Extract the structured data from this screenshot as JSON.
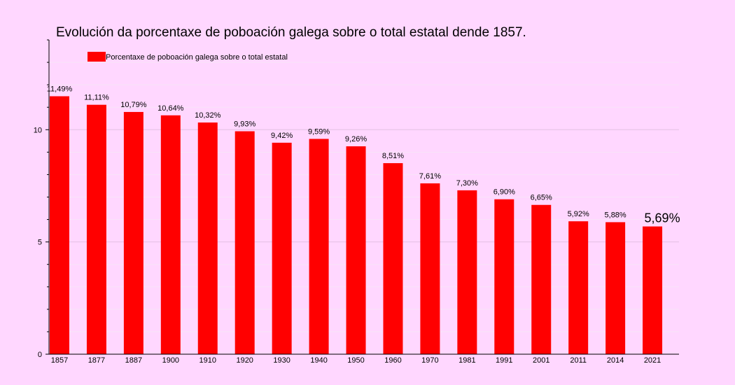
{
  "chart_data": {
    "type": "bar",
    "title": "Evolución da porcentaxe de poboación galega sobre o total estatal dende 1857.",
    "xlabel": "",
    "ylabel": "",
    "ylim": [
      0,
      14
    ],
    "yticks": [
      0,
      5,
      10
    ],
    "grid": true,
    "legend_position": "top-left",
    "bar_color": "#ff0000",
    "categories": [
      "1857",
      "1877",
      "1887",
      "1900",
      "1910",
      "1920",
      "1930",
      "1940",
      "1950",
      "1960",
      "1970",
      "1981",
      "1991",
      "2001",
      "2011",
      "2014",
      "2021"
    ],
    "series": [
      {
        "name": "Porcentaxe de poboación galega sobre o total estatal",
        "values": [
          11.49,
          11.11,
          10.79,
          10.64,
          10.32,
          9.93,
          9.42,
          9.59,
          9.26,
          8.51,
          7.61,
          7.3,
          6.9,
          6.65,
          5.92,
          5.88,
          5.69
        ],
        "labels": [
          "11,49%",
          "11,11%",
          "10,79%",
          "10,64%",
          "10,32%",
          "9,93%",
          "9,42%",
          "9,59%",
          "9,26%",
          "8,51%",
          "7,61%",
          "7,30%",
          "6,90%",
          "6,65%",
          "5,92%",
          "5,88%",
          "5,69%"
        ]
      }
    ]
  }
}
